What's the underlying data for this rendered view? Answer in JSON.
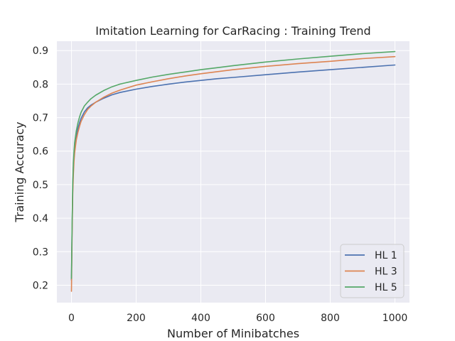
{
  "chart_data": {
    "type": "line",
    "title": "Imitation Learning for CarRacing : Training Trend",
    "xlabel": "Number of Minibatches",
    "ylabel": "Training Accuracy",
    "xlim": [
      -45,
      1045
    ],
    "ylim": [
      0.148,
      0.928
    ],
    "xticks": [
      0,
      200,
      400,
      600,
      800,
      1000
    ],
    "yticks": [
      0.2,
      0.3,
      0.4,
      0.5,
      0.6,
      0.7,
      0.8,
      0.9
    ],
    "grid": true,
    "legend_position": "lower-right",
    "background_color": "#eaeaf2",
    "grid_color": "#ffffff",
    "series": [
      {
        "name": "HL 1",
        "color": "#4c72b0",
        "x": [
          0,
          2,
          4,
          6,
          8,
          10,
          15,
          20,
          25,
          30,
          40,
          50,
          60,
          75,
          100,
          125,
          150,
          200,
          250,
          300,
          350,
          400,
          450,
          500,
          600,
          700,
          800,
          900,
          1000
        ],
        "y": [
          0.215,
          0.37,
          0.49,
          0.55,
          0.585,
          0.61,
          0.645,
          0.668,
          0.685,
          0.698,
          0.717,
          0.729,
          0.737,
          0.746,
          0.758,
          0.768,
          0.775,
          0.785,
          0.793,
          0.8,
          0.806,
          0.811,
          0.816,
          0.82,
          0.828,
          0.836,
          0.843,
          0.85,
          0.857
        ]
      },
      {
        "name": "HL 3",
        "color": "#dd8452",
        "x": [
          0,
          2,
          4,
          6,
          8,
          10,
          15,
          20,
          25,
          30,
          40,
          50,
          60,
          75,
          100,
          125,
          150,
          200,
          250,
          300,
          350,
          400,
          450,
          500,
          600,
          700,
          800,
          900,
          1000
        ],
        "y": [
          0.182,
          0.35,
          0.47,
          0.53,
          0.57,
          0.595,
          0.633,
          0.656,
          0.674,
          0.689,
          0.709,
          0.724,
          0.734,
          0.746,
          0.761,
          0.773,
          0.782,
          0.797,
          0.807,
          0.816,
          0.824,
          0.831,
          0.837,
          0.843,
          0.853,
          0.861,
          0.868,
          0.876,
          0.882
        ]
      },
      {
        "name": "HL 5",
        "color": "#55a868",
        "x": [
          0,
          2,
          4,
          6,
          8,
          10,
          15,
          20,
          25,
          30,
          40,
          50,
          60,
          75,
          100,
          125,
          150,
          200,
          250,
          300,
          350,
          400,
          450,
          500,
          600,
          700,
          800,
          900,
          1000
        ],
        "y": [
          0.22,
          0.38,
          0.5,
          0.565,
          0.6,
          0.625,
          0.66,
          0.684,
          0.702,
          0.716,
          0.735,
          0.746,
          0.756,
          0.767,
          0.781,
          0.792,
          0.8,
          0.811,
          0.821,
          0.829,
          0.836,
          0.843,
          0.849,
          0.855,
          0.866,
          0.875,
          0.883,
          0.891,
          0.897
        ]
      }
    ]
  }
}
